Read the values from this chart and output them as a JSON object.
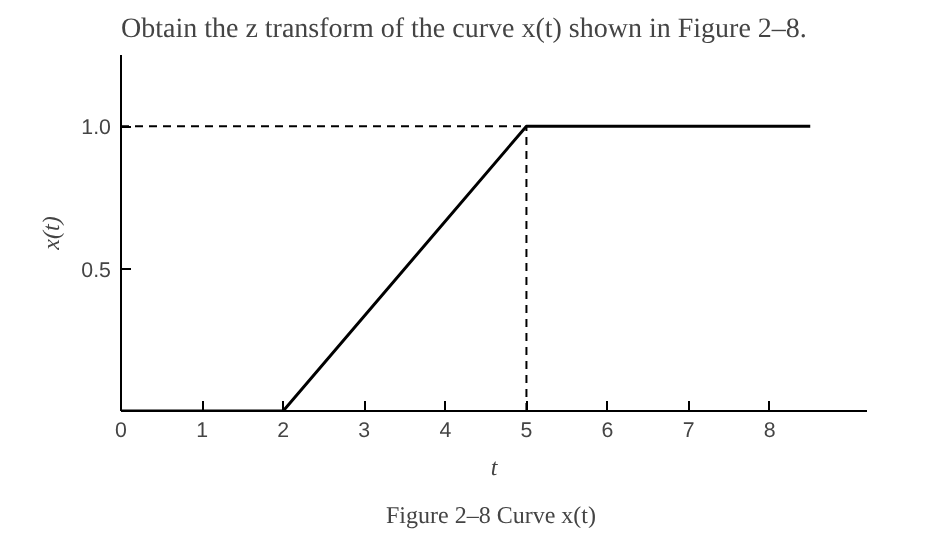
{
  "chart_data": {
    "type": "line",
    "title": "Obtain the z transform of the curve x(t) shown in Figure 2–8.",
    "xlabel": "t",
    "ylabel": "x(t)",
    "x": [
      0,
      2,
      5,
      8.5
    ],
    "series": [
      {
        "color": "#000000",
        "values": [
          0,
          0,
          1,
          1
        ]
      }
    ],
    "xlim": [
      0,
      9.2
    ],
    "ylim": [
      0,
      1.25
    ],
    "xticks": [
      {
        "value": 0,
        "label": "0"
      },
      1,
      2,
      3,
      4,
      5,
      6,
      7,
      8
    ],
    "yticks": [
      {
        "value": 0,
        "label": null
      },
      {
        "value": 0.5,
        "label": "0.5"
      },
      {
        "value": 1,
        "label": "1.0"
      }
    ],
    "ref_lines": [
      {
        "axis": "y",
        "value": 1,
        "line_style": "dashed",
        "color": "#000000"
      },
      {
        "axis": "x",
        "value": 5,
        "line_style": "dashed",
        "color": "#000000"
      }
    ],
    "annotations": [
      "Figure 2–8  Curve x(t)"
    ],
    "grid": false,
    "marker": "none",
    "line_style": "solid"
  }
}
